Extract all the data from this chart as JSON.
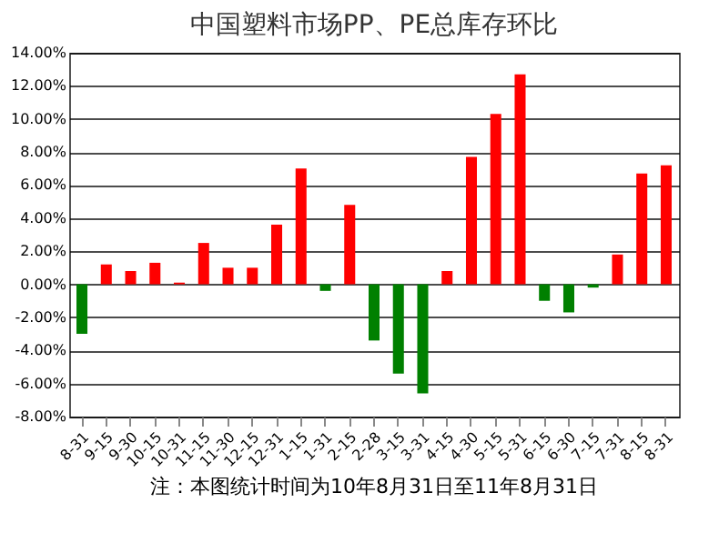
{
  "chart_data": {
    "type": "bar",
    "title": "中国塑料市场PP、PE总库存环比",
    "categories": [
      "8-31",
      "9-15",
      "9-30",
      "10-15",
      "10-31",
      "11-15",
      "11-30",
      "12-15",
      "12-31",
      "1-15",
      "1-31",
      "2-15",
      "2-28",
      "3-15",
      "3-31",
      "4-15",
      "4-30",
      "5-15",
      "5-31",
      "6-15",
      "6-30",
      "7-15",
      "7-31",
      "8-15",
      "8-31"
    ],
    "values": [
      -3.0,
      1.2,
      0.8,
      1.3,
      0.1,
      2.5,
      1.0,
      1.0,
      3.6,
      7.0,
      -0.4,
      4.8,
      -3.4,
      -5.4,
      -6.6,
      0.8,
      7.7,
      10.3,
      12.7,
      -1.0,
      -1.7,
      -0.2,
      1.8,
      6.7,
      7.2
    ],
    "colors": [
      "#008000",
      "#ff0000",
      "#ff0000",
      "#ff0000",
      "#ff0000",
      "#ff0000",
      "#ff0000",
      "#ff0000",
      "#ff0000",
      "#ff0000",
      "#008000",
      "#ff0000",
      "#008000",
      "#008000",
      "#008000",
      "#ff0000",
      "#ff0000",
      "#ff0000",
      "#ff0000",
      "#008000",
      "#008000",
      "#008000",
      "#ff0000",
      "#ff0000",
      "#ff0000"
    ],
    "ylim": [
      -8,
      14
    ],
    "yticks": [
      {
        "value": -8,
        "label": "-8.00%"
      },
      {
        "value": -6,
        "label": "-6.00%"
      },
      {
        "value": -4,
        "label": "-4.00%"
      },
      {
        "value": -2,
        "label": "-2.00%"
      },
      {
        "value": 0,
        "label": "0.00%"
      },
      {
        "value": 2,
        "label": "2.00%"
      },
      {
        "value": 4,
        "label": "4.00%"
      },
      {
        "value": 6,
        "label": "6.00%"
      },
      {
        "value": 8,
        "label": "8.00%"
      },
      {
        "value": 10,
        "label": "10.00%"
      },
      {
        "value": 12,
        "label": "12.00%"
      },
      {
        "value": 14,
        "label": "14.00%"
      }
    ],
    "grid": "y",
    "annotations": [
      "注：本图统计时间为10年8月31日至11年8月31日"
    ]
  }
}
